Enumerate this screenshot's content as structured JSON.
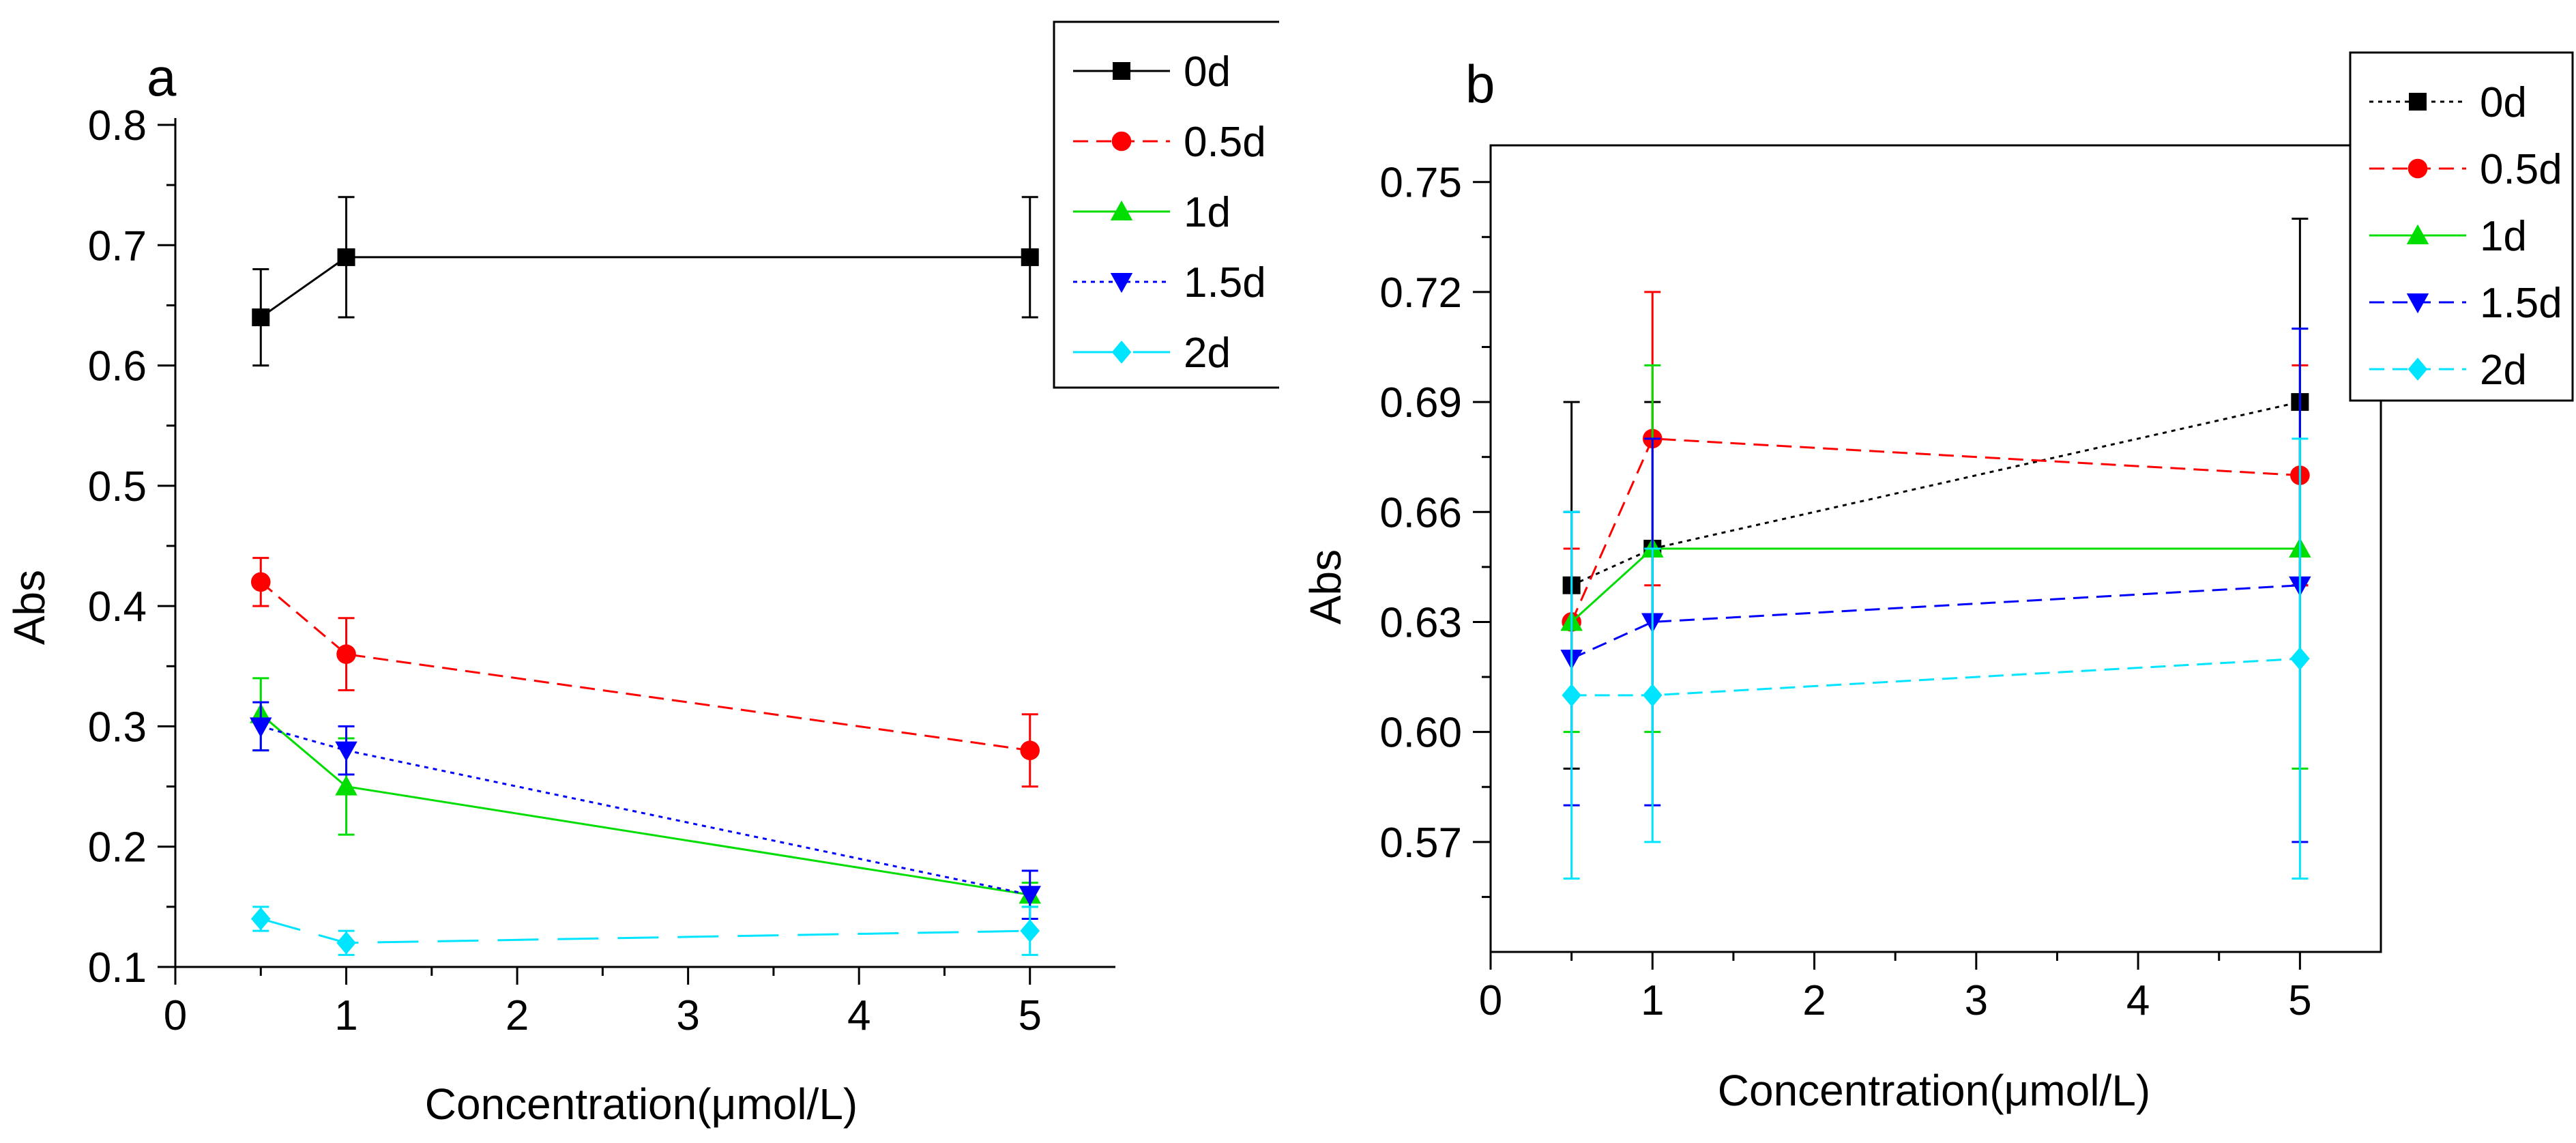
{
  "chart_data": [
    {
      "panel_label": "a",
      "type": "line",
      "xlabel": "Concentration(μmol/L)",
      "ylabel": "Abs",
      "xlim": [
        0,
        5.5
      ],
      "ylim": [
        0.1,
        0.8
      ],
      "xticks": [
        0,
        1,
        2,
        3,
        4,
        5
      ],
      "yticks": [
        0.1,
        0.2,
        0.3,
        0.4,
        0.5,
        0.6,
        0.7,
        0.8
      ],
      "ytick_decimals": 1,
      "x": [
        0.5,
        1,
        5
      ],
      "grid": false,
      "legend": "top-right",
      "series": [
        {
          "name": "0d",
          "color": "#000000",
          "marker": "square",
          "dash": "solid",
          "line": true,
          "values": [
            0.64,
            0.69,
            0.69
          ],
          "errors": [
            0.04,
            0.05,
            0.05
          ]
        },
        {
          "name": "0.5d",
          "color": "#ff0000",
          "marker": "circle",
          "dash": "dashed",
          "line": true,
          "values": [
            0.42,
            0.36,
            0.28
          ],
          "errors": [
            0.02,
            0.03,
            0.03
          ]
        },
        {
          "name": "1d",
          "color": "#00dd00",
          "marker": "triangle-up",
          "dash": "solid",
          "line": true,
          "values": [
            0.31,
            0.25,
            0.16
          ],
          "errors": [
            0.03,
            0.04,
            0.01
          ]
        },
        {
          "name": "1.5d",
          "color": "#0000ff",
          "marker": "triangle-down",
          "dash": "dotted",
          "line": true,
          "values": [
            0.3,
            0.28,
            0.16
          ],
          "errors": [
            0.02,
            0.02,
            0.02
          ]
        },
        {
          "name": "2d",
          "color": "#00e5ff",
          "marker": "diamond",
          "dash": "longdash",
          "line": true,
          "values": [
            0.14,
            0.12,
            0.13
          ],
          "errors": [
            0.01,
            0.01,
            0.02
          ]
        }
      ]
    },
    {
      "panel_label": "b",
      "type": "line",
      "xlabel": "Concentration(μmol/L)",
      "ylabel": "Abs",
      "xlim": [
        0,
        5.5
      ],
      "ylim": [
        0.54,
        0.76
      ],
      "xticks": [
        0,
        1,
        2,
        3,
        4,
        5
      ],
      "yticks": [
        0.57,
        0.6,
        0.63,
        0.66,
        0.69,
        0.72,
        0.75
      ],
      "ytick_decimals": 2,
      "x": [
        0.5,
        1,
        5
      ],
      "grid": false,
      "legend": "top-right",
      "series": [
        {
          "name": "0d",
          "color": "#000000",
          "marker": "square",
          "dash": "dotted",
          "line": true,
          "values": [
            0.64,
            0.65,
            0.69
          ],
          "errors": [
            0.05,
            0.04,
            0.05
          ]
        },
        {
          "name": "0.5d",
          "color": "#ff0000",
          "marker": "circle",
          "dash": "dashed",
          "line": true,
          "values": [
            0.63,
            0.68,
            0.67
          ],
          "errors": [
            0.02,
            0.04,
            0.03
          ]
        },
        {
          "name": "1d",
          "color": "#00dd00",
          "marker": "triangle-up",
          "dash": "solid",
          "line": true,
          "values": [
            0.63,
            0.65,
            0.65
          ],
          "errors": [
            0.03,
            0.05,
            0.06
          ]
        },
        {
          "name": "1.5d",
          "color": "#0000ff",
          "marker": "triangle-down",
          "dash": "dashed",
          "line": true,
          "values": [
            0.62,
            0.63,
            0.64
          ],
          "errors": [
            0.04,
            0.05,
            0.07
          ]
        },
        {
          "name": "2d",
          "color": "#00e5ff",
          "marker": "diamond",
          "dash": "dashed",
          "line": true,
          "values": [
            0.61,
            0.61,
            0.62
          ],
          "errors": [
            0.05,
            0.04,
            0.06
          ]
        }
      ]
    }
  ]
}
